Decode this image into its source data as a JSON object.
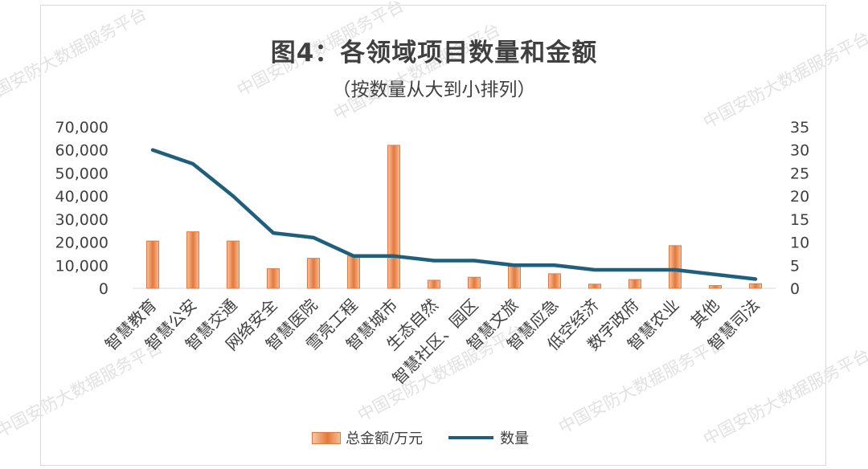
{
  "watermarks": [
    "中国安防大数据服务平台",
    "中国安防大数据服务平台",
    "中国安防大数据服务平台",
    "中国安防大数据服务平台",
    "中国安防大数据服务平台",
    "中国安防大数据服务平台"
  ],
  "colors": {
    "bar": "#e5783a",
    "line": "#1f5f7d",
    "axis_text": "#404040"
  },
  "chart_data": {
    "type": "bar",
    "title": "图4：各领域项目数量和金额",
    "subtitle": "（按数量从大到小排列）",
    "categories": [
      "智慧教育",
      "智慧公安",
      "智慧交通",
      "网络安全",
      "智慧医院",
      "雪亮工程",
      "智慧城市",
      "生态自然",
      "智慧社区、园区",
      "智慧文旅",
      "智慧应急",
      "低空经济",
      "数字政府",
      "智慧农业",
      "其他",
      "智慧司法"
    ],
    "series": [
      {
        "name": "总金额/万元",
        "type": "bar",
        "axis": "left",
        "values": [
          20500,
          24500,
          20500,
          8500,
          13000,
          14000,
          62000,
          3500,
          4800,
          9500,
          6300,
          1800,
          3800,
          18500,
          1200,
          2000
        ]
      },
      {
        "name": "数量",
        "type": "line",
        "axis": "right",
        "values": [
          30,
          27,
          20,
          12,
          11,
          7,
          7,
          6,
          6,
          5,
          5,
          4,
          4,
          4,
          3,
          2
        ]
      }
    ],
    "left_axis": {
      "ylim": [
        0,
        70000
      ],
      "ticks": [
        "0",
        "10,000",
        "20,000",
        "30,000",
        "40,000",
        "50,000",
        "60,000",
        "70,000"
      ]
    },
    "right_axis": {
      "ylim": [
        0,
        35
      ],
      "ticks": [
        "0",
        "5",
        "10",
        "15",
        "20",
        "25",
        "30",
        "35"
      ]
    },
    "legend_position": "bottom",
    "grid": false
  }
}
